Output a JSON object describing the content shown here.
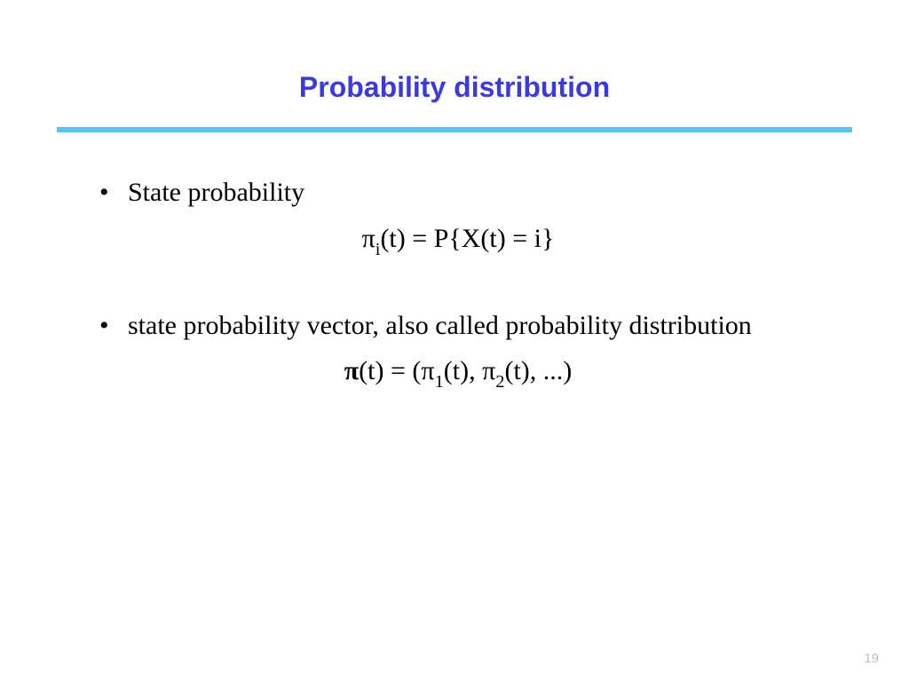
{
  "title": "Probability distribution",
  "title_color": "#3a3adf",
  "rule_color": "#58c3ee",
  "bullets": {
    "b1": "State probability",
    "b2": "state probability vector, also called probability distribution"
  },
  "formula1": {
    "pi": "π",
    "sub_i": "i",
    "rest_a": "(t) = P{X(t) = i}"
  },
  "formula2": {
    "pi_bold": "π",
    "a": "(t) = (",
    "pi1": "π",
    "sub1": "1",
    "b": "(t), ",
    "pi2": "π",
    "sub2": "2",
    "c": "(t), ...)"
  },
  "pagenum": "19",
  "pagenum_color": "#bfbfbf"
}
